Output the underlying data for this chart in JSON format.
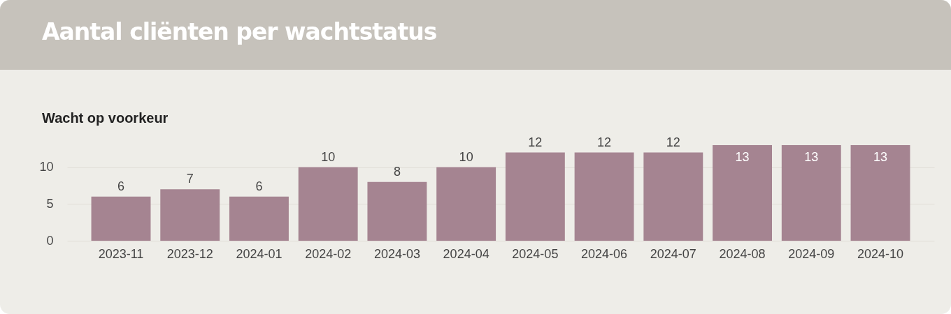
{
  "chart_data": {
    "type": "bar",
    "title": "Aantal cliënten per wachtstatus",
    "subtitle": "Wacht op voorkeur",
    "categories": [
      "2023-11",
      "2023-12",
      "2024-01",
      "2024-02",
      "2024-03",
      "2024-04",
      "2024-05",
      "2024-06",
      "2024-07",
      "2024-08",
      "2024-09",
      "2024-10"
    ],
    "values": [
      6,
      7,
      6,
      10,
      8,
      10,
      12,
      12,
      12,
      13,
      13,
      13
    ],
    "color": "#a58491",
    "ylim": [
      0,
      13
    ],
    "yticks": [
      0,
      5,
      10
    ],
    "grid": "y",
    "data_labels": true
  }
}
